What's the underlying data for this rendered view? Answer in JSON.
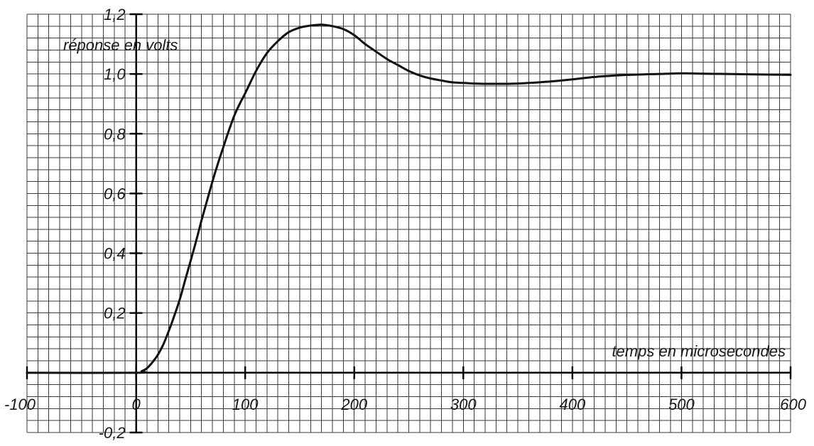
{
  "chart_data": {
    "type": "line",
    "title": "",
    "xlabel": "temps en microsecondes",
    "ylabel": "réponse en volts",
    "xlim": [
      -100,
      600
    ],
    "ylim": [
      -0.2,
      1.2
    ],
    "grid": true,
    "x_tick_labels": [
      "-100",
      "0",
      "100",
      "200",
      "300",
      "400",
      "500",
      "600"
    ],
    "x_tick_values": [
      -100,
      0,
      100,
      200,
      300,
      400,
      500,
      600
    ],
    "y_tick_labels": [
      "1,2",
      "1,0",
      "0,8",
      "0,6",
      "0,4",
      "0,2",
      "-0,2"
    ],
    "y_tick_values": [
      1.2,
      1.0,
      0.8,
      0.6,
      0.4,
      0.2,
      -0.2
    ],
    "series": [
      {
        "x": [
          -100,
          0,
          5,
          10,
          15,
          20,
          25,
          30,
          35,
          40,
          45,
          50,
          55,
          60,
          65,
          70,
          75,
          80,
          85,
          90,
          95,
          100,
          110,
          120,
          130,
          140,
          150,
          160,
          170,
          180,
          190,
          200,
          210,
          220,
          230,
          240,
          250,
          260,
          270,
          280,
          290,
          300,
          310,
          320,
          330,
          340,
          350,
          360,
          380,
          400,
          420,
          440,
          460,
          480,
          500,
          520,
          540,
          560,
          580,
          600
        ],
        "y": [
          0,
          0,
          0.005,
          0.015,
          0.035,
          0.06,
          0.095,
          0.14,
          0.19,
          0.245,
          0.31,
          0.375,
          0.44,
          0.51,
          0.575,
          0.64,
          0.7,
          0.755,
          0.81,
          0.86,
          0.9,
          0.935,
          1.01,
          1.07,
          1.11,
          1.14,
          1.155,
          1.162,
          1.165,
          1.16,
          1.15,
          1.13,
          1.1,
          1.075,
          1.05,
          1.03,
          1.01,
          0.995,
          0.985,
          0.978,
          0.972,
          0.97,
          0.968,
          0.967,
          0.967,
          0.967,
          0.968,
          0.97,
          0.975,
          0.982,
          0.99,
          0.995,
          0.998,
          1.0,
          1.002,
          1.001,
          1.0,
          0.999,
          0.998,
          0.997
        ]
      }
    ]
  }
}
